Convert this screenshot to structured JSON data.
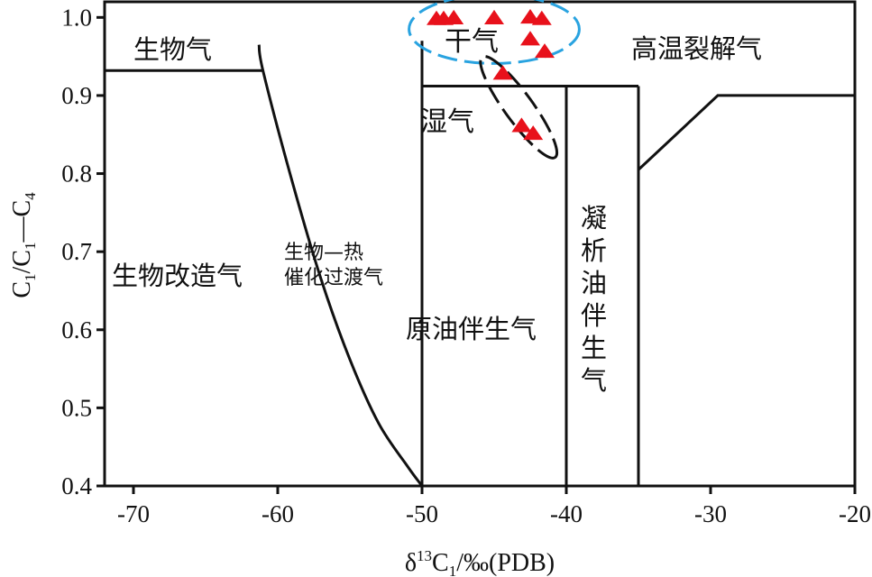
{
  "chart_data": {
    "type": "scatter",
    "xlim": [
      -72,
      -20
    ],
    "ylim": [
      0.4,
      1.02
    ],
    "x_ticks": [
      -70,
      -60,
      -50,
      -40,
      -30,
      -20
    ],
    "y_ticks": [
      0.4,
      0.5,
      0.6,
      0.7,
      0.8,
      0.9,
      1.0
    ],
    "x_tick_labels": [
      "-70",
      "-60",
      "-50",
      "-40",
      "-30",
      "-20"
    ],
    "y_tick_labels": [
      "0.4",
      "0.5",
      "0.6",
      "0.7",
      "0.8",
      "0.9",
      "1.0"
    ],
    "xlabel": {
      "a": "δ",
      "b": "13",
      "c": "C",
      "d": "1",
      "e": "/‰(PDB)"
    },
    "ylabel": {
      "a": "C",
      "b": "1",
      "c": "/C",
      "d": "1",
      "e": "—C",
      "f": "4"
    },
    "grid": false,
    "zones": {
      "biogas": "生物气",
      "modified_biogas": "生物改造气",
      "transition_1": "生物—热",
      "transition_2": "催化过渡气",
      "dry_gas": "干气",
      "wet_gas": "湿气",
      "oil_associated_gas": "原油伴生气",
      "condensate_associated_gas": [
        "凝",
        "析",
        "油",
        "伴",
        "生",
        "气"
      ],
      "high_temp_cracking_gas": "高温裂解气"
    },
    "boundaries": {
      "biogas_line": [
        [
          -72,
          0.932
        ],
        [
          -61,
          0.932
        ]
      ],
      "transition_curve": [
        [
          -61.3,
          0.965
        ],
        [
          -61,
          0.93
        ],
        [
          -59,
          0.79
        ],
        [
          -57,
          0.665
        ],
        [
          -55,
          0.562
        ],
        [
          -53,
          0.48
        ],
        [
          -51,
          0.425
        ],
        [
          -50,
          0.4
        ]
      ],
      "vertical_minus50": [
        [
          -50,
          0.4
        ],
        [
          -50,
          0.97
        ]
      ],
      "oil_gas_top": [
        [
          -50,
          0.912
        ],
        [
          -35,
          0.912
        ]
      ],
      "vertical_minus40": [
        [
          -40,
          0.4
        ],
        [
          -40,
          0.912
        ]
      ],
      "vertical_minus35": [
        [
          -35,
          0.4
        ],
        [
          -35,
          0.912
        ]
      ],
      "high_temp_line": [
        [
          -35,
          0.805
        ],
        [
          -29.5,
          0.9
        ],
        [
          -20,
          0.9
        ]
      ]
    },
    "series": [
      {
        "marker": "triangle",
        "color": "#e8111b",
        "points": [
          {
            "x": -49.0,
            "y": 0.998
          },
          {
            "x": -48.5,
            "y": 0.998
          },
          {
            "x": -47.8,
            "y": 0.999
          },
          {
            "x": -45.0,
            "y": 0.999
          },
          {
            "x": -42.5,
            "y": 1.0
          },
          {
            "x": -41.7,
            "y": 0.998
          },
          {
            "x": -42.5,
            "y": 0.972
          },
          {
            "x": -41.5,
            "y": 0.956
          },
          {
            "x": -44.4,
            "y": 0.928
          },
          {
            "x": -43.1,
            "y": 0.861
          },
          {
            "x": -42.3,
            "y": 0.851
          }
        ]
      }
    ],
    "ellipses": [
      {
        "name": "dry-gas-ellipse",
        "color": "#29a3e0",
        "dash": "long",
        "center": [
          -45.0,
          0.985
        ],
        "rx_data": 5.9,
        "ry_data": 0.044,
        "rotate": 0
      },
      {
        "name": "wet-gas-ellipse",
        "color": "#111111",
        "dash": "long",
        "center": [
          -43.3,
          0.885
        ],
        "rx_data": 4.3,
        "ry_data": 0.018,
        "rotate": 54
      }
    ]
  }
}
